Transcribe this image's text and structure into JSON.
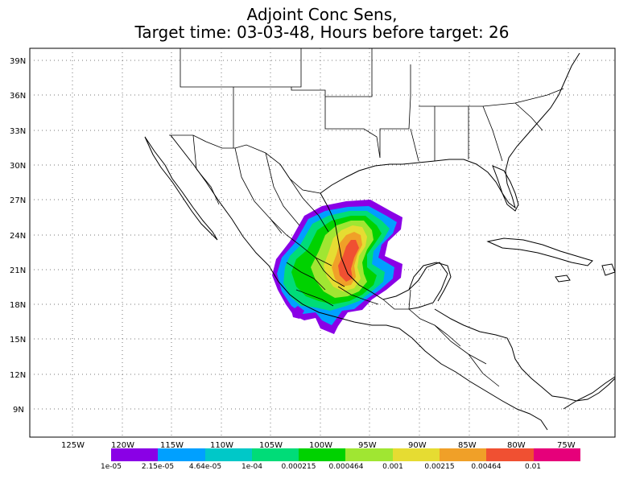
{
  "title": {
    "line1": "Adjoint Conc Sens,",
    "line2": "Target time: 03-03-48, Hours before target: 26"
  },
  "lat_ticks": [
    "39N",
    "36N",
    "33N",
    "30N",
    "27N",
    "24N",
    "21N",
    "18N",
    "15N",
    "12N",
    "9N"
  ],
  "lon_ticks": [
    "125W",
    "120W",
    "115W",
    "110W",
    "105W",
    "100W",
    "95W",
    "90W",
    "85W",
    "80W",
    "75W"
  ],
  "colorbar": {
    "colors": [
      "#8a00e6",
      "#00a0ff",
      "#00c8c8",
      "#00dc78",
      "#00d200",
      "#a0e632",
      "#e6dc32",
      "#f0a028",
      "#f05032",
      "#e6007a"
    ],
    "labels": [
      "1e-05",
      "2.15e-05",
      "4.64e-05",
      "1e-04",
      "0.000215",
      "0.000464",
      "0.001",
      "0.00215",
      "0.00464",
      "0.01"
    ]
  }
}
